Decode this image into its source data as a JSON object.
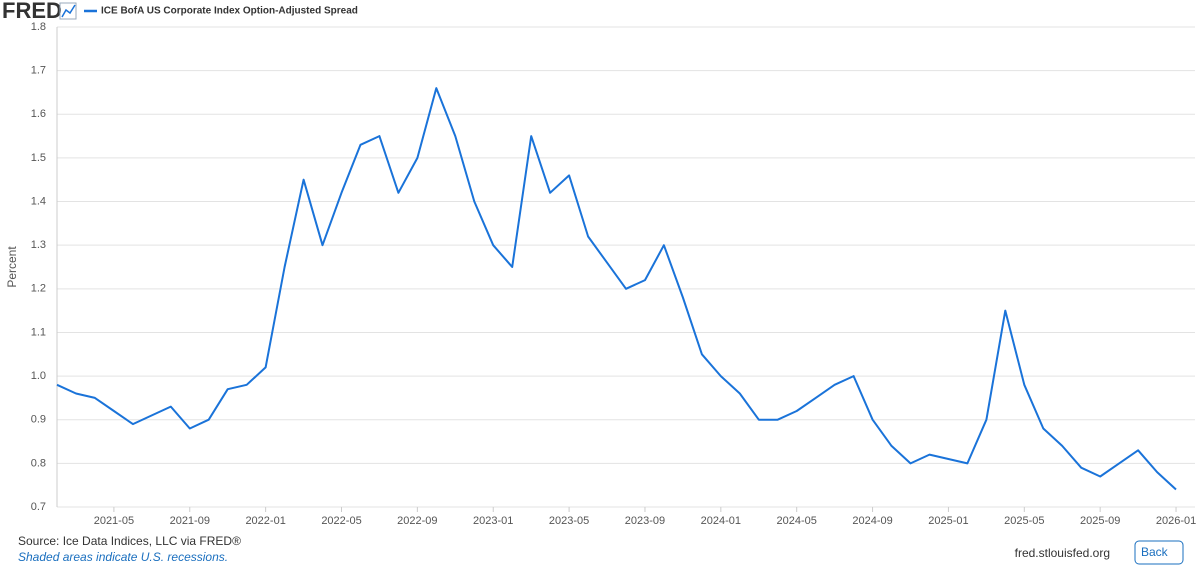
{
  "chart_data": {
    "type": "line",
    "brand": "FRED",
    "ylabel": "Percent",
    "source": "Source: Ice Data Indices, LLC via FRED®",
    "note": "Shaded areas indicate U.S. recessions.",
    "credit": "fred.stlouisfed.org",
    "x": [
      "2021-02",
      "2021-03",
      "2021-04",
      "2021-05",
      "2021-06",
      "2021-07",
      "2021-08",
      "2021-09",
      "2021-10",
      "2021-11",
      "2021-12",
      "2022-01",
      "2022-02",
      "2022-03",
      "2022-04",
      "2022-05",
      "2022-06",
      "2022-07",
      "2022-08",
      "2022-09",
      "2022-10",
      "2022-11",
      "2022-12",
      "2023-01",
      "2023-02",
      "2023-03",
      "2023-04",
      "2023-05",
      "2023-06",
      "2023-07",
      "2023-08",
      "2023-09",
      "2023-10",
      "2023-11",
      "2023-12",
      "2024-01",
      "2024-02",
      "2024-03",
      "2024-04",
      "2024-05",
      "2024-06",
      "2024-07",
      "2024-08",
      "2024-09",
      "2024-10",
      "2024-11",
      "2024-12",
      "2025-01",
      "2025-02",
      "2025-03",
      "2025-04",
      "2025-05",
      "2025-06",
      "2025-07",
      "2025-08",
      "2025-09",
      "2025-10",
      "2025-11",
      "2025-12",
      "2026-01"
    ],
    "series": [
      {
        "name": "ICE BofA US Corporate Index Option-Adjusted Spread",
        "color": "#1a73d9",
        "values": [
          0.98,
          0.96,
          0.95,
          0.92,
          0.89,
          0.91,
          0.93,
          0.88,
          0.9,
          0.97,
          0.98,
          1.02,
          1.25,
          1.45,
          1.3,
          1.42,
          1.53,
          1.55,
          1.42,
          1.5,
          1.66,
          1.55,
          1.4,
          1.3,
          1.25,
          1.55,
          1.42,
          1.46,
          1.32,
          1.26,
          1.2,
          1.22,
          1.3,
          1.18,
          1.05,
          1.0,
          0.96,
          0.9,
          0.9,
          0.92,
          0.95,
          0.98,
          1.0,
          0.9,
          0.84,
          0.8,
          0.82,
          0.81,
          0.8,
          0.9,
          1.15,
          0.98,
          0.88,
          0.84,
          0.79,
          0.77,
          0.8,
          0.83,
          0.78,
          0.74
        ]
      }
    ],
    "xlim": [
      "2021-02",
      "2026-02"
    ],
    "xticks": [
      "2021-05",
      "2021-09",
      "2022-01",
      "2022-05",
      "2022-09",
      "2023-01",
      "2023-05",
      "2023-09",
      "2024-01",
      "2024-05",
      "2024-09",
      "2025-01",
      "2025-05",
      "2025-09",
      "2026-01"
    ],
    "ylim": [
      0.7,
      1.8
    ],
    "yticks": [
      0.7,
      0.8,
      0.9,
      {
        "value": 1,
        "label": "1.0"
      },
      1.1,
      1.2,
      1.3,
      1.4,
      1.5,
      1.6,
      1.7,
      1.8
    ],
    "grid": true
  },
  "back_button": "Back"
}
